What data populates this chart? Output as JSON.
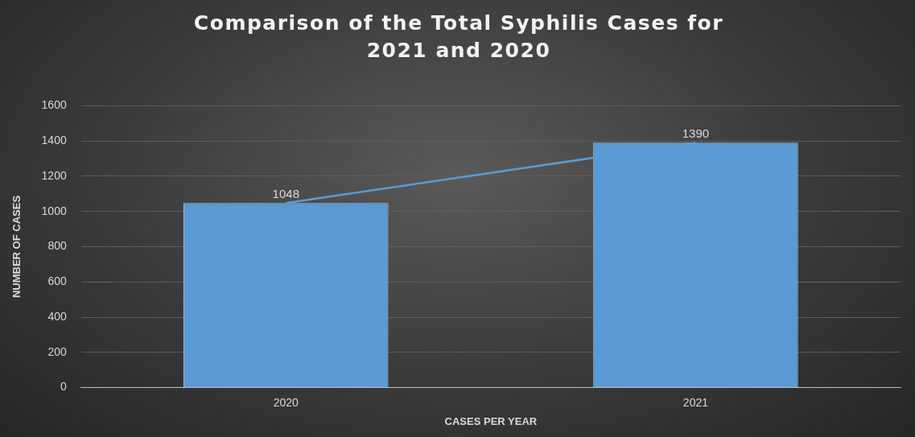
{
  "chart_data": {
    "type": "bar",
    "title": "Comparison of the Total Syphilis Cases for 2021 and 2020",
    "xlabel": "CASES PER YEAR",
    "ylabel": "NUMBER OF CASES",
    "categories": [
      "2020",
      "2021"
    ],
    "series": [
      {
        "color": "#5b9bd5",
        "values": [
          1048,
          1390
        ],
        "value_labels": [
          "1048",
          "1390"
        ]
      },
      {
        "type": "line",
        "color": "#5b9bd5",
        "values": [
          1048,
          1390
        ],
        "marker": "none"
      }
    ],
    "ylim": [
      0,
      1600
    ],
    "yticks": [
      0,
      200,
      400,
      600,
      800,
      1000,
      1200,
      1400,
      1600
    ],
    "grid": "y",
    "legend": false
  }
}
